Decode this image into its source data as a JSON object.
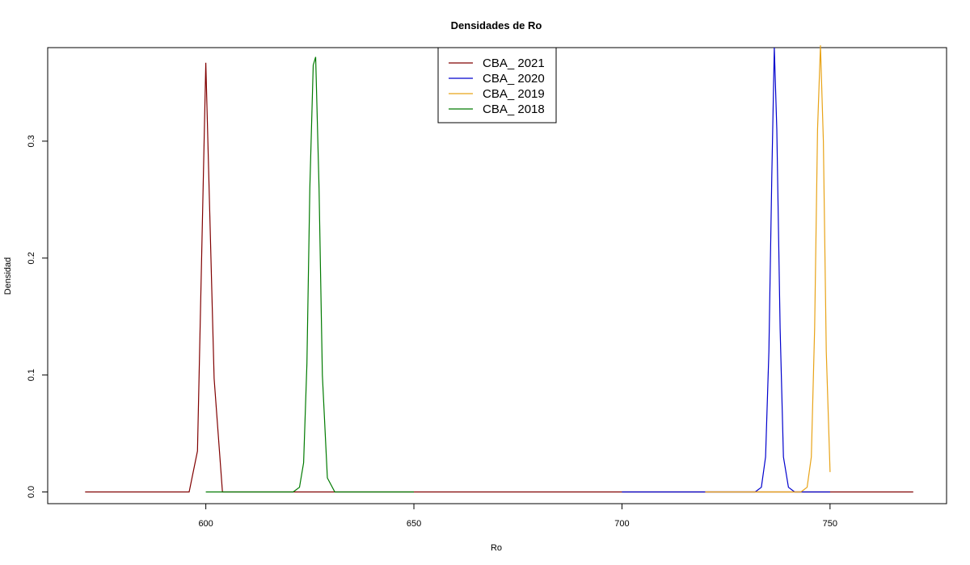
{
  "chart_data": {
    "type": "line",
    "title": "Densidades de Ro",
    "xlabel": "Ro",
    "ylabel": "Densidad",
    "xlim": [
      562,
      778
    ],
    "ylim": [
      -0.01,
      0.38
    ],
    "x_ticks": [
      600,
      650,
      700,
      750
    ],
    "x_tick_labels": [
      "600",
      "650",
      "700",
      "750"
    ],
    "y_ticks": [
      0.0,
      0.1,
      0.2,
      0.3
    ],
    "y_tick_labels": [
      "0.0",
      "0.1",
      "0.2",
      "0.3"
    ],
    "grid": false,
    "legend_position": "top-center",
    "series": [
      {
        "name": "CBA_ 2021",
        "color": "#800000",
        "x": [
          571,
          590,
          596,
          598,
          600,
          602,
          604,
          606,
          650,
          700,
          770
        ],
        "y": [
          0.0,
          0.0,
          0.0,
          0.035,
          0.367,
          0.097,
          0.0,
          0.0,
          0.0,
          0.0,
          0.0
        ]
      },
      {
        "name": "CBA_ 2020",
        "color": "#0000CD",
        "x": [
          700,
          720,
          732,
          733.5,
          734.5,
          735.3,
          736.0,
          736.6,
          737.2,
          738.0,
          738.8,
          740.0,
          741.5,
          750
        ],
        "y": [
          0.0,
          0.0,
          0.0,
          0.004,
          0.03,
          0.12,
          0.27,
          0.38,
          0.31,
          0.14,
          0.03,
          0.004,
          0.0,
          0.0
        ]
      },
      {
        "name": "CBA_ 2019",
        "color": "#E8A317",
        "x": [
          720,
          735,
          743,
          744.5,
          745.5,
          746.3,
          747.0,
          747.7,
          748.4,
          749.1,
          750.0
        ],
        "y": [
          0.0,
          0.0,
          0.0,
          0.004,
          0.03,
          0.14,
          0.31,
          0.382,
          0.3,
          0.12,
          0.017
        ]
      },
      {
        "name": "CBA_ 2018",
        "color": "#007A00",
        "x": [
          600,
          615,
          621,
          622.5,
          623.5,
          624.3,
          625.0,
          625.8,
          626.4,
          627.2,
          628.0,
          629.2,
          631,
          650
        ],
        "y": [
          0.0,
          0.0,
          0.0,
          0.004,
          0.025,
          0.11,
          0.26,
          0.365,
          0.372,
          0.26,
          0.1,
          0.012,
          0.0,
          0.0
        ]
      }
    ]
  }
}
